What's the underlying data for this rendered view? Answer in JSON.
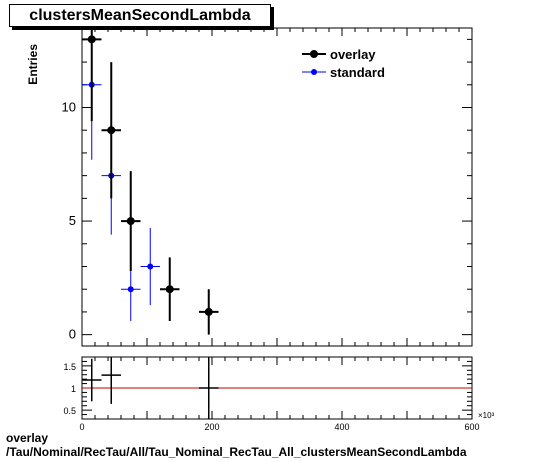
{
  "title": "clustersMeanSecondLambda",
  "footer": {
    "line1": "overlay",
    "line2": "/Tau/Nominal/RecTau/All/Tau_Nominal_RecTau_All_clustersMeanSecondLambda"
  },
  "chart_data": [
    {
      "type": "scatter",
      "ylabel": "Entries",
      "xlim": [
        0,
        600
      ],
      "ylim": [
        -0.5,
        13.5
      ],
      "yticks": [
        0,
        5,
        10
      ],
      "legend_position": "top-right",
      "series": [
        {
          "name": "overlay",
          "color": "#000000",
          "points": [
            {
              "x": 15,
              "xerr": 15,
              "y": 13,
              "yerr": 3.6
            },
            {
              "x": 45,
              "xerr": 15,
              "y": 9,
              "yerr": 3.0
            },
            {
              "x": 75,
              "xerr": 15,
              "y": 5,
              "yerr": 2.2
            },
            {
              "x": 135,
              "xerr": 15,
              "y": 2,
              "yerr": 1.4
            },
            {
              "x": 195,
              "xerr": 15,
              "y": 1,
              "yerr": 1.0
            }
          ]
        },
        {
          "name": "standard",
          "color": "#0000ff",
          "points": [
            {
              "x": 15,
              "xerr": 15,
              "y": 11,
              "yerr": 3.3
            },
            {
              "x": 45,
              "xerr": 15,
              "y": 7,
              "yerr": 2.6
            },
            {
              "x": 75,
              "xerr": 15,
              "y": 2,
              "yerr": 1.4
            },
            {
              "x": 105,
              "xerr": 15,
              "y": 3,
              "yerr": 1.7
            }
          ]
        }
      ]
    },
    {
      "type": "scatter",
      "xlim": [
        0,
        600
      ],
      "ylim": [
        0.3,
        1.7
      ],
      "xticks": [
        0,
        200,
        400,
        600
      ],
      "yticks": [
        0.5,
        1,
        1.5
      ],
      "x_exponent_label": "×10³",
      "reference_line": {
        "y": 1,
        "color": "#cc0000"
      },
      "series": [
        {
          "name": "ratio",
          "color": "#000000",
          "points": [
            {
              "x": 15,
              "xerr": 15,
              "y": 1.18,
              "yerr": 0.48
            },
            {
              "x": 45,
              "xerr": 15,
              "y": 1.29,
              "yerr": 0.65
            },
            {
              "x": 195,
              "xerr": 15,
              "y": 1.0,
              "yerr": 1.0
            }
          ]
        }
      ]
    }
  ]
}
